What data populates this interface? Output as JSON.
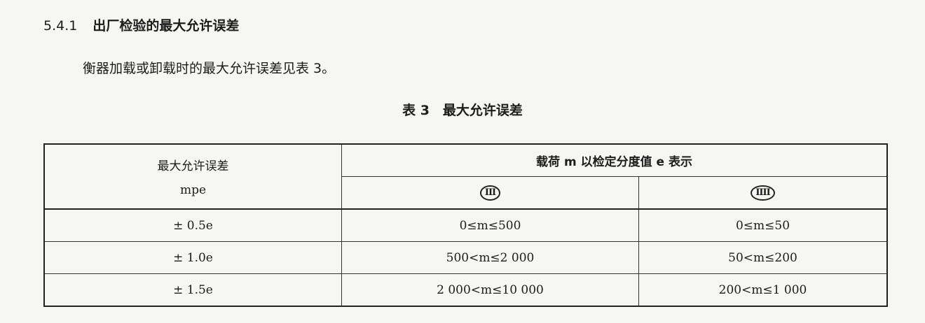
{
  "section": {
    "number": "5.4.1",
    "title": "出厂检验的最大允许误差"
  },
  "paragraph": "衡器加载或卸载时的最大允许误差见表 3。",
  "table": {
    "caption": "表 3　最大允许误差",
    "header_left_line1": "最大允许误差",
    "header_left_line2": "mpe",
    "header_right": "载荷 m 以检定分度值 e 表示",
    "classes": [
      {
        "symbol": "III",
        "icon": "accuracy-class-III-icon"
      },
      {
        "symbol": "IIII",
        "icon": "accuracy-class-IIII-icon"
      }
    ],
    "rows": [
      {
        "mpe": "± 0.5e",
        "class3": "0≤m≤500",
        "class4": "0≤m≤50"
      },
      {
        "mpe": "± 1.0e",
        "class3": "500<m≤2 000",
        "class4": "50<m≤200"
      },
      {
        "mpe": "± 1.5e",
        "class3": "2 000<m≤10 000",
        "class4": "200<m≤1 000"
      }
    ]
  }
}
